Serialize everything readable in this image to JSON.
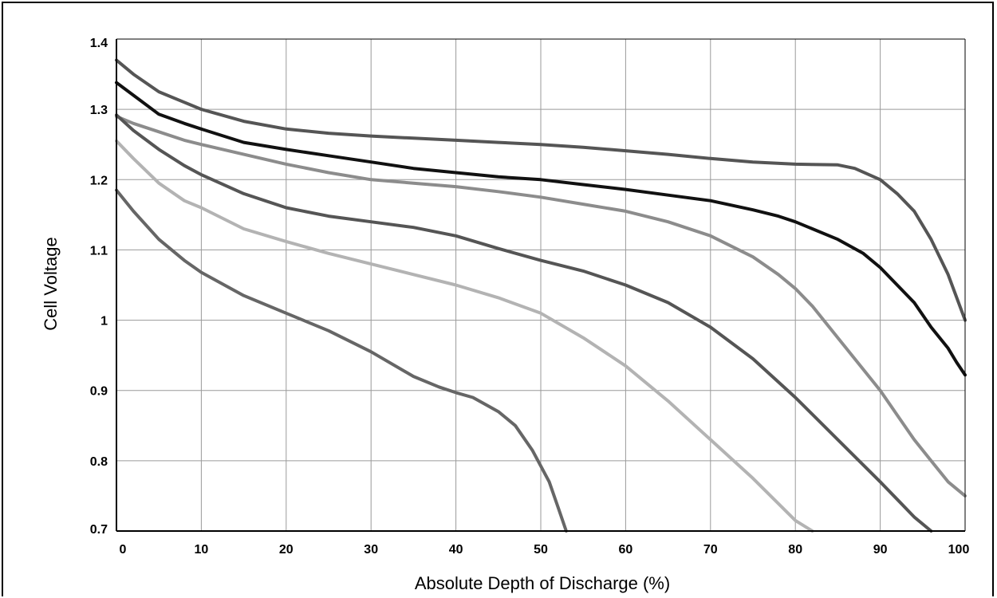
{
  "chart_data": {
    "type": "line",
    "title": "",
    "xlabel": "Absolute Depth of Discharge (%)",
    "ylabel": "Cell Voltage",
    "xlim": [
      0,
      100
    ],
    "ylim": [
      0.7,
      1.4
    ],
    "xticks": [
      0,
      10,
      20,
      30,
      40,
      50,
      60,
      70,
      80,
      90,
      100
    ],
    "xtick_labels": [
      "0",
      "10",
      "20",
      "30",
      "40",
      "50",
      "60",
      "70",
      "80",
      "90",
      "100"
    ],
    "yticks": [
      0.7,
      0.8,
      0.9,
      1.0,
      1.1,
      1.2,
      1.3,
      1.4
    ],
    "ytick_labels": [
      "0.7",
      "0.8",
      "0.9",
      "1",
      "1.1",
      "1.2",
      "1.3",
      "1.4"
    ],
    "grid": true,
    "legend": "none",
    "series": [
      {
        "color": "#555555",
        "x": [
          0,
          2,
          5,
          8,
          10,
          15,
          20,
          25,
          30,
          35,
          40,
          45,
          50,
          55,
          60,
          65,
          70,
          75,
          80,
          85,
          87,
          90,
          92,
          94,
          96,
          98,
          100
        ],
        "y": [
          1.37,
          1.35,
          1.325,
          1.31,
          1.3,
          1.283,
          1.272,
          1.266,
          1.262,
          1.259,
          1.256,
          1.253,
          1.25,
          1.246,
          1.241,
          1.236,
          1.23,
          1.225,
          1.222,
          1.221,
          1.216,
          1.2,
          1.18,
          1.155,
          1.115,
          1.065,
          1.0
        ]
      },
      {
        "color": "#111111",
        "x": [
          0,
          2,
          5,
          8,
          10,
          15,
          20,
          25,
          30,
          35,
          40,
          45,
          50,
          55,
          60,
          65,
          70,
          75,
          78,
          80,
          85,
          88,
          90,
          92,
          94,
          96,
          98,
          99,
          100
        ],
        "y": [
          1.338,
          1.32,
          1.293,
          1.28,
          1.272,
          1.253,
          1.243,
          1.234,
          1.225,
          1.216,
          1.21,
          1.204,
          1.2,
          1.193,
          1.186,
          1.178,
          1.17,
          1.157,
          1.148,
          1.14,
          1.115,
          1.095,
          1.075,
          1.05,
          1.025,
          0.99,
          0.96,
          0.94,
          0.922
        ]
      },
      {
        "color": "#8c8c8c",
        "x": [
          0,
          2,
          5,
          8,
          10,
          15,
          20,
          25,
          30,
          35,
          40,
          45,
          50,
          55,
          60,
          65,
          70,
          75,
          78,
          80,
          82,
          85,
          88,
          90,
          92,
          94,
          96,
          98,
          100
        ],
        "y": [
          1.29,
          1.28,
          1.268,
          1.256,
          1.25,
          1.236,
          1.222,
          1.21,
          1.2,
          1.195,
          1.19,
          1.183,
          1.175,
          1.165,
          1.155,
          1.14,
          1.12,
          1.09,
          1.065,
          1.045,
          1.02,
          0.975,
          0.93,
          0.9,
          0.865,
          0.83,
          0.8,
          0.77,
          0.75
        ]
      },
      {
        "color": "#555555",
        "x": [
          0,
          2,
          5,
          8,
          10,
          15,
          20,
          25,
          30,
          35,
          40,
          45,
          50,
          55,
          60,
          65,
          70,
          75,
          80,
          85,
          90,
          92,
          94,
          96
        ],
        "y": [
          1.292,
          1.27,
          1.243,
          1.22,
          1.207,
          1.18,
          1.16,
          1.148,
          1.14,
          1.132,
          1.12,
          1.102,
          1.085,
          1.07,
          1.05,
          1.025,
          0.99,
          0.945,
          0.89,
          0.83,
          0.77,
          0.745,
          0.72,
          0.7
        ]
      },
      {
        "color": "#b3b3b3",
        "x": [
          0,
          2,
          5,
          8,
          10,
          15,
          20,
          25,
          30,
          35,
          40,
          45,
          50,
          55,
          60,
          65,
          70,
          75,
          80,
          82
        ],
        "y": [
          1.255,
          1.23,
          1.195,
          1.17,
          1.16,
          1.13,
          1.112,
          1.095,
          1.08,
          1.065,
          1.05,
          1.032,
          1.01,
          0.975,
          0.935,
          0.885,
          0.83,
          0.775,
          0.715,
          0.7
        ]
      },
      {
        "color": "#666666",
        "x": [
          0,
          2,
          5,
          8,
          10,
          15,
          20,
          25,
          30,
          35,
          38,
          40,
          42,
          45,
          47,
          49,
          51,
          52,
          53
        ],
        "y": [
          1.185,
          1.155,
          1.115,
          1.085,
          1.068,
          1.035,
          1.01,
          0.985,
          0.955,
          0.92,
          0.905,
          0.897,
          0.89,
          0.87,
          0.85,
          0.815,
          0.77,
          0.735,
          0.7
        ]
      }
    ]
  }
}
